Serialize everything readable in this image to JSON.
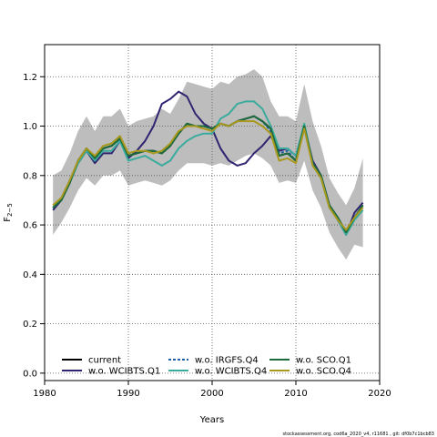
{
  "chart_data": {
    "type": "line",
    "title": "",
    "xlabel": "Years",
    "ylabel": "F",
    "ylabel_subscript": "2−5",
    "xlim": [
      1980,
      2020
    ],
    "ylim": [
      -0.03,
      1.33
    ],
    "xticks": [
      1980,
      1990,
      2000,
      2010,
      2020
    ],
    "yticks": [
      0.0,
      0.2,
      0.4,
      0.6,
      0.8,
      1.0,
      1.2
    ],
    "grid": "dotted at ticks",
    "legend_position": "bottom-left",
    "x": [
      1981,
      1982,
      1983,
      1984,
      1985,
      1986,
      1987,
      1988,
      1989,
      1990,
      1991,
      1992,
      1993,
      1994,
      1995,
      1996,
      1997,
      1998,
      1999,
      2000,
      2001,
      2002,
      2003,
      2004,
      2005,
      2006,
      2007,
      2008,
      2009,
      2010,
      2011,
      2012,
      2013,
      2014,
      2015,
      2016,
      2017,
      2018
    ],
    "band": {
      "upper": [
        0.8,
        0.82,
        0.89,
        0.98,
        1.04,
        0.98,
        1.04,
        1.04,
        1.07,
        1.0,
        1.02,
        1.03,
        1.04,
        1.07,
        1.05,
        1.11,
        1.18,
        1.17,
        1.16,
        1.15,
        1.18,
        1.17,
        1.2,
        1.21,
        1.23,
        1.2,
        1.1,
        1.04,
        1.04,
        1.02,
        1.17,
        1.02,
        0.92,
        0.79,
        0.73,
        0.68,
        0.75,
        0.87
      ],
      "lower": [
        0.56,
        0.61,
        0.67,
        0.74,
        0.79,
        0.76,
        0.8,
        0.8,
        0.82,
        0.76,
        0.77,
        0.78,
        0.77,
        0.76,
        0.78,
        0.82,
        0.85,
        0.85,
        0.85,
        0.84,
        0.85,
        0.84,
        0.86,
        0.88,
        0.89,
        0.87,
        0.84,
        0.77,
        0.78,
        0.77,
        0.86,
        0.74,
        0.67,
        0.57,
        0.51,
        0.46,
        0.52,
        0.51
      ]
    },
    "series": [
      {
        "name": "current",
        "color": "#000000",
        "dash": "",
        "values": [
          0.67,
          0.7,
          0.77,
          0.86,
          0.91,
          0.87,
          0.91,
          0.92,
          0.95,
          0.88,
          0.89,
          0.9,
          0.9,
          0.89,
          0.92,
          0.97,
          1.01,
          1.0,
          1.0,
          0.99,
          1.01,
          1.0,
          1.02,
          1.03,
          1.04,
          1.02,
          0.99,
          0.88,
          0.89,
          0.86,
          1.0,
          0.85,
          0.8,
          0.68,
          0.63,
          0.57,
          0.63,
          0.68
        ]
      },
      {
        "name": "w.o. WCIBTS.Q1",
        "color": "#2f2470",
        "dash": "",
        "values": [
          0.66,
          0.7,
          0.78,
          0.85,
          0.9,
          0.85,
          0.89,
          0.89,
          0.94,
          0.87,
          0.9,
          0.94,
          1.0,
          1.09,
          1.11,
          1.14,
          1.12,
          1.05,
          1.01,
          0.99,
          0.91,
          0.86,
          0.84,
          0.85,
          0.89,
          0.92,
          0.96,
          0.9,
          0.91,
          0.88,
          1.0,
          0.86,
          0.8,
          0.68,
          0.62,
          0.56,
          0.65,
          0.69
        ]
      },
      {
        "name": "w.o. IRGFS.Q4",
        "color": "#1f5fa8",
        "dash": "3,2",
        "values": [
          0.67,
          0.7,
          0.77,
          0.86,
          0.91,
          0.87,
          0.91,
          0.92,
          0.95,
          0.88,
          0.89,
          0.9,
          0.9,
          0.89,
          0.92,
          0.97,
          1.01,
          1.0,
          1.0,
          0.99,
          1.01,
          1.0,
          1.02,
          1.03,
          1.04,
          1.02,
          0.98,
          0.89,
          0.9,
          0.86,
          1.0,
          0.85,
          0.8,
          0.68,
          0.63,
          0.57,
          0.63,
          0.67
        ]
      },
      {
        "name": "w.o. WCIBTS.Q4",
        "color": "#3aab9c",
        "dash": "",
        "values": [
          0.67,
          0.71,
          0.77,
          0.85,
          0.9,
          0.86,
          0.9,
          0.9,
          0.94,
          0.86,
          0.87,
          0.88,
          0.86,
          0.84,
          0.86,
          0.91,
          0.94,
          0.96,
          0.97,
          0.97,
          1.03,
          1.05,
          1.09,
          1.1,
          1.1,
          1.07,
          1.0,
          0.91,
          0.91,
          0.88,
          1.01,
          0.85,
          0.79,
          0.67,
          0.62,
          0.56,
          0.62,
          0.66
        ]
      },
      {
        "name": "w.o. SCO.Q1",
        "color": "#1d6b3a",
        "dash": "",
        "values": [
          0.67,
          0.7,
          0.77,
          0.86,
          0.91,
          0.87,
          0.91,
          0.92,
          0.95,
          0.88,
          0.89,
          0.9,
          0.9,
          0.89,
          0.92,
          0.97,
          1.01,
          1.0,
          1.0,
          0.99,
          1.01,
          1.0,
          1.02,
          1.03,
          1.04,
          1.02,
          0.99,
          0.88,
          0.89,
          0.86,
          1.0,
          0.85,
          0.8,
          0.68,
          0.63,
          0.57,
          0.63,
          0.68
        ]
      },
      {
        "name": "w.o. SCO.Q4",
        "color": "#a8981e",
        "dash": "",
        "values": [
          0.68,
          0.71,
          0.78,
          0.86,
          0.91,
          0.88,
          0.92,
          0.93,
          0.96,
          0.89,
          0.9,
          0.9,
          0.89,
          0.9,
          0.93,
          0.98,
          1.0,
          1.0,
          0.99,
          0.98,
          1.01,
          1.0,
          1.02,
          1.02,
          1.02,
          1.0,
          0.97,
          0.86,
          0.87,
          0.85,
          0.99,
          0.84,
          0.79,
          0.67,
          0.62,
          0.58,
          0.63,
          0.67
        ]
      }
    ]
  },
  "footer": "stockassessment.org, cod6a_2020_v4, r11681 , git: df0b7c1bcb83"
}
